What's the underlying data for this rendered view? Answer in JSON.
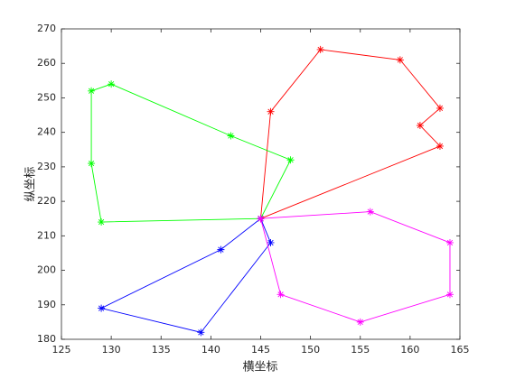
{
  "chart_data": {
    "type": "line",
    "xlabel": "横坐标",
    "ylabel": "纵坐标",
    "xlim": [
      125,
      165
    ],
    "ylim": [
      180,
      270
    ],
    "xticks": [
      125,
      130,
      135,
      140,
      145,
      150,
      155,
      160,
      165
    ],
    "yticks": [
      180,
      190,
      200,
      210,
      220,
      230,
      240,
      250,
      260,
      270
    ],
    "marker": "*",
    "series": [
      {
        "color": "#ff0000",
        "x": [
          145,
          146,
          151,
          159,
          163,
          161,
          163,
          145
        ],
        "values": [
          215,
          246,
          264,
          261,
          247,
          242,
          236,
          215
        ]
      },
      {
        "color": "#00ff00",
        "x": [
          145,
          148,
          142,
          130,
          128,
          128,
          129,
          145
        ],
        "values": [
          215,
          232,
          239,
          254,
          252,
          231,
          214,
          215
        ]
      },
      {
        "color": "#0000ff",
        "x": [
          145,
          146,
          139,
          129,
          141,
          145
        ],
        "values": [
          215,
          208,
          182,
          189,
          206,
          215
        ]
      },
      {
        "color": "#ff00ff",
        "x": [
          145,
          156,
          164,
          164,
          155,
          147,
          145
        ],
        "values": [
          215,
          217,
          208,
          193,
          185,
          193,
          215
        ]
      }
    ]
  }
}
